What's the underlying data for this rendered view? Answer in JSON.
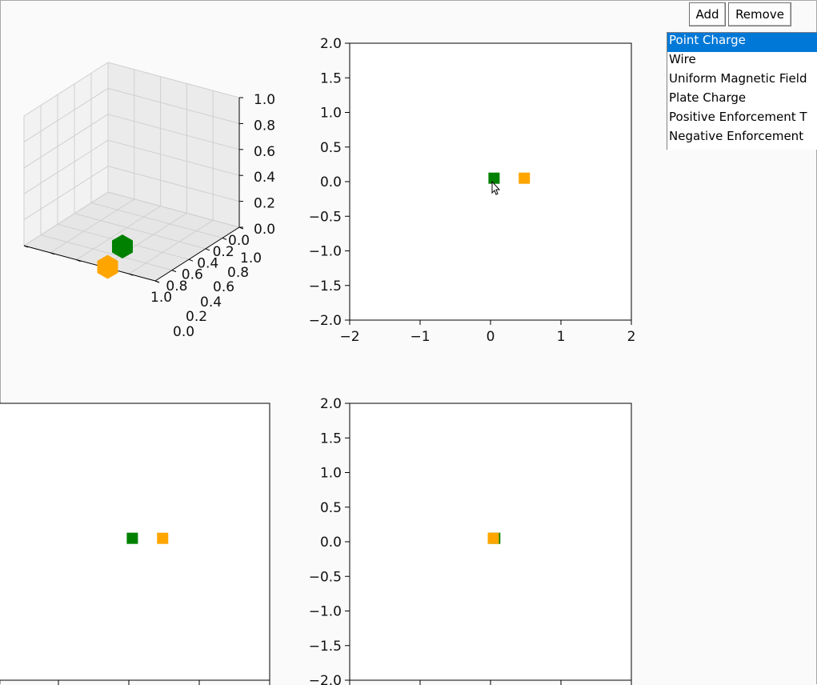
{
  "toolbar": {
    "add_label": "Add",
    "remove_label": "Remove"
  },
  "object_list": {
    "items": [
      {
        "label": "Point Charge",
        "selected": true
      },
      {
        "label": "Wire",
        "selected": false
      },
      {
        "label": "Uniform Magnetic Field",
        "selected": false
      },
      {
        "label": "Plate Charge",
        "selected": false
      },
      {
        "label": "Positive Enforcement T",
        "selected": false
      },
      {
        "label": "Negative Enforcement",
        "selected": false
      }
    ]
  },
  "colors": {
    "green": "#008000",
    "orange": "#ffa500",
    "selection": "#0078d7"
  },
  "chart_data": [
    {
      "type": "scatter",
      "projection": "3d",
      "xlim": [
        0,
        1
      ],
      "ylim": [
        0,
        1
      ],
      "zlim": [
        0,
        1
      ],
      "x_ticks": [
        "0.0",
        "0.2",
        "0.4",
        "0.6",
        "0.8",
        "1.0"
      ],
      "y_ticks": [
        "0.0",
        "0.2",
        "0.4",
        "0.6",
        "0.8",
        "1.0"
      ],
      "z_ticks": [
        "0.0",
        "0.2",
        "0.4",
        "0.6",
        "0.8",
        "1.0"
      ],
      "points": [
        {
          "color": "green",
          "x": 0.0,
          "y": 0.0,
          "z": 0.0
        },
        {
          "color": "orange",
          "x": 0.5,
          "y": 0.0,
          "z": 0.0
        }
      ]
    },
    {
      "type": "scatter",
      "xlim": [
        -2,
        2
      ],
      "ylim": [
        -2,
        2
      ],
      "x_ticks": [
        "−2",
        "−1",
        "0",
        "1",
        "2"
      ],
      "y_ticks": [
        "2.0",
        "1.5",
        "1.0",
        "0.5",
        "0.0",
        "−0.5",
        "−1.0",
        "−1.5",
        "−2.0"
      ],
      "points": [
        {
          "color": "green",
          "x": 0.05,
          "y": 0.05
        },
        {
          "color": "orange",
          "x": 0.48,
          "y": 0.05
        }
      ]
    },
    {
      "type": "scatter",
      "xlim": [
        -2,
        2
      ],
      "ylim": [
        -2,
        2
      ],
      "points": [
        {
          "color": "green",
          "x": 0.05,
          "y": 0.05
        },
        {
          "color": "orange",
          "x": 0.48,
          "y": 0.05
        }
      ]
    },
    {
      "type": "scatter",
      "xlim": [
        -2,
        2
      ],
      "ylim": [
        -2,
        2
      ],
      "y_ticks": [
        "2.0",
        "1.5",
        "1.0",
        "0.5",
        "0.0",
        "−0.5",
        "−1.0",
        "−1.5",
        "−2.0"
      ],
      "points": [
        {
          "color": "green",
          "x": 0.06,
          "y": 0.05
        },
        {
          "color": "orange",
          "x": 0.04,
          "y": 0.05
        }
      ]
    }
  ]
}
